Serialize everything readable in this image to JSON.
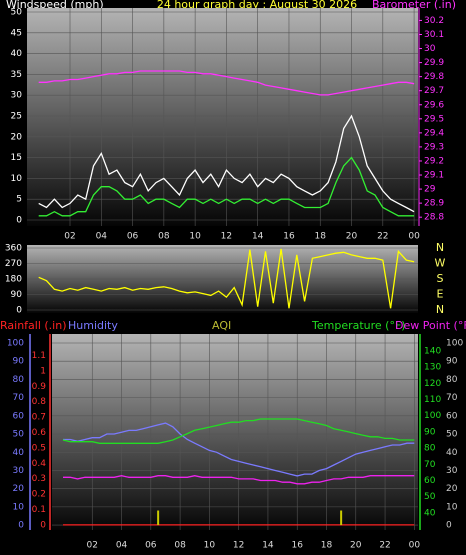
{
  "chart_data": [
    {
      "type": "line",
      "title": "24 hour graph day : August 30 2026",
      "x": [
        0,
        0.5,
        1,
        1.5,
        2,
        2.5,
        3,
        3.5,
        4,
        4.5,
        5,
        5.5,
        6,
        6.5,
        7,
        7.5,
        8,
        8.5,
        9,
        9.5,
        10,
        10.5,
        11,
        11.5,
        12,
        12.5,
        13,
        13.5,
        14,
        14.5,
        15,
        15.5,
        16,
        16.5,
        17,
        17.5,
        18,
        18.5,
        19,
        19.5,
        20,
        20.5,
        21,
        21.5,
        22,
        22.5,
        23,
        23.5,
        24
      ],
      "xlim": [
        -0.75,
        24.25
      ],
      "xticks": [
        {
          "value": 2,
          "label": "02"
        },
        {
          "value": 4,
          "label": "04"
        },
        {
          "value": 6,
          "label": "06"
        },
        {
          "value": 8,
          "label": "08"
        },
        10,
        12,
        14,
        16,
        18,
        20,
        22,
        {
          "value": 24,
          "label": "00"
        }
      ],
      "ylim": [
        0,
        50
      ],
      "yticks": [
        0,
        5,
        10,
        15,
        20,
        25,
        30,
        35,
        40,
        45,
        50
      ],
      "y2lim": [
        28.78,
        30.26
      ],
      "y2ticks": [
        28.8,
        28.9,
        29,
        29.1,
        29.2,
        29.3,
        29.4,
        29.5,
        29.6,
        29.7,
        29.8,
        29.9,
        30,
        30.1,
        30.2
      ],
      "grid": true,
      "series": [
        {
          "name": "Windspeed (mph)",
          "color": "#ffffff",
          "values": [
            4,
            3,
            5,
            3,
            4,
            6,
            5,
            13,
            16,
            11,
            12,
            9,
            8,
            11,
            7,
            9,
            10,
            8,
            6,
            10,
            12,
            9,
            11,
            8,
            12,
            10,
            9,
            11,
            8,
            10,
            9,
            11,
            10,
            8,
            7,
            6,
            7,
            9,
            14,
            22,
            25,
            20,
            13,
            10,
            7,
            5,
            4,
            3,
            2
          ]
        },
        {
          "color": "#33ee33",
          "values": [
            1,
            1,
            2,
            1,
            1,
            2,
            2,
            6,
            8,
            8,
            7,
            5,
            5,
            6,
            4,
            5,
            5,
            4,
            3,
            5,
            5,
            4,
            5,
            4,
            5,
            4,
            5,
            5,
            4,
            5,
            4,
            5,
            5,
            4,
            3,
            3,
            3,
            4,
            9,
            13,
            15,
            12,
            7,
            6,
            3,
            2,
            1,
            1,
            1
          ]
        },
        {
          "name": "Barometer (.in)",
          "color": "#ff33ff",
          "axis": "y2",
          "values": [
            29.76,
            29.76,
            29.77,
            29.77,
            29.78,
            29.78,
            29.79,
            29.8,
            29.81,
            29.82,
            29.82,
            29.83,
            29.83,
            29.84,
            29.84,
            29.84,
            29.84,
            29.84,
            29.84,
            29.83,
            29.83,
            29.82,
            29.82,
            29.81,
            29.8,
            29.79,
            29.78,
            29.77,
            29.76,
            29.74,
            29.73,
            29.72,
            29.71,
            29.7,
            29.69,
            29.68,
            29.67,
            29.67,
            29.68,
            29.69,
            29.7,
            29.71,
            29.72,
            29.73,
            29.74,
            29.75,
            29.76,
            29.76,
            29.75
          ]
        }
      ]
    },
    {
      "type": "line",
      "x": [
        0,
        0.5,
        1,
        1.5,
        2,
        2.5,
        3,
        3.5,
        4,
        4.5,
        5,
        5.5,
        6,
        6.5,
        7,
        7.5,
        8,
        8.5,
        9,
        9.5,
        10,
        10.5,
        11,
        11.5,
        12,
        12.5,
        13,
        13.5,
        14,
        14.5,
        15,
        15.5,
        16,
        16.5,
        17,
        17.5,
        18,
        18.5,
        19,
        19.5,
        20,
        20.5,
        21,
        21.5,
        22,
        22.5,
        23,
        23.5,
        24
      ],
      "xlim": [
        -0.75,
        24.25
      ],
      "ylim": [
        0,
        360
      ],
      "yticks": [
        0,
        90,
        180,
        270,
        360
      ],
      "direction_labels": [
        "N",
        "E",
        "S",
        "W",
        "N"
      ],
      "grid": true,
      "series": [
        {
          "color": "#ffff00",
          "values": [
            190,
            170,
            120,
            110,
            125,
            115,
            130,
            120,
            110,
            125,
            120,
            130,
            115,
            125,
            120,
            130,
            135,
            125,
            110,
            100,
            105,
            95,
            85,
            110,
            75,
            130,
            30,
            350,
            20,
            340,
            40,
            355,
            10,
            320,
            50,
            300,
            310,
            320,
            330,
            335,
            320,
            310,
            300,
            300,
            290,
            10,
            340,
            290,
            280
          ]
        }
      ]
    },
    {
      "type": "line",
      "x": [
        0,
        0.5,
        1,
        1.5,
        2,
        2.5,
        3,
        3.5,
        4,
        4.5,
        5,
        5.5,
        6,
        6.5,
        7,
        7.5,
        8,
        8.5,
        9,
        9.5,
        10,
        10.5,
        11,
        11.5,
        12,
        12.5,
        13,
        13.5,
        14,
        14.5,
        15,
        15.5,
        16,
        16.5,
        17,
        17.5,
        18,
        18.5,
        19,
        19.5,
        20,
        20.5,
        21,
        21.5,
        22,
        22.5,
        23,
        23.5,
        24
      ],
      "xlim": [
        -0.75,
        24.25
      ],
      "xticks": [
        {
          "value": 2,
          "label": "02"
        },
        {
          "value": 4,
          "label": "04"
        },
        {
          "value": 6,
          "label": "06"
        },
        {
          "value": 8,
          "label": "08"
        },
        10,
        12,
        14,
        16,
        18,
        20,
        22,
        {
          "value": 24,
          "label": "00"
        }
      ],
      "grid": true,
      "axes": [
        {
          "color": "#ff3333",
          "lim": [
            -0.02,
            1.22
          ],
          "ticks": [
            0,
            0.1,
            0.2,
            0.3,
            0.4,
            0.5,
            0.6,
            0.7,
            0.8,
            0.9,
            1,
            1.1
          ]
        },
        {
          "color": "#7a7aff",
          "lim": [
            -1.6,
            103.3
          ],
          "ticks": [
            0,
            10,
            20,
            30,
            40,
            50,
            60,
            70,
            80,
            90,
            100
          ]
        },
        {
          "color": "#22dd22",
          "lim": [
            30.7,
            148.6
          ],
          "ticks": [
            40,
            50,
            60,
            70,
            80,
            90,
            100,
            110,
            120,
            130,
            140
          ]
        },
        {
          "color": "#cccccc",
          "lim": [
            -1.6,
            103.3
          ],
          "ticks": [
            0,
            10,
            20,
            30,
            40,
            50,
            60,
            70,
            80,
            90,
            100
          ]
        }
      ],
      "series": [
        {
          "name": "Rainfall (.in)",
          "color": "#ff2222",
          "axis": 0,
          "values": [
            0,
            0,
            0,
            0,
            0,
            0,
            0,
            0,
            0,
            0,
            0,
            0,
            0,
            0,
            0,
            0,
            0,
            0,
            0,
            0,
            0,
            0,
            0,
            0,
            0,
            0,
            0,
            0,
            0,
            0,
            0,
            0,
            0,
            0,
            0,
            0,
            0,
            0,
            0,
            0,
            0,
            0,
            0,
            0,
            0,
            0,
            0,
            0,
            0
          ]
        },
        {
          "name": "Humidity",
          "color": "#7a7aff",
          "axis": 1,
          "values": [
            47,
            47,
            46,
            47,
            48,
            48,
            50,
            50,
            51,
            52,
            52,
            53,
            54,
            55,
            56,
            54,
            50,
            47,
            45,
            43,
            41,
            40,
            38,
            36,
            35,
            34,
            33,
            32,
            31,
            30,
            29,
            28,
            27,
            28,
            28,
            30,
            31,
            33,
            35,
            37,
            39,
            40,
            41,
            42,
            43,
            44,
            44,
            45,
            45
          ]
        },
        {
          "name": "AQI",
          "color": "#cccc00",
          "axis": 1,
          "type": "bar",
          "values": [
            null,
            null,
            null,
            null,
            null,
            null,
            null,
            null,
            null,
            null,
            null,
            null,
            null,
            8,
            null,
            null,
            null,
            null,
            null,
            null,
            null,
            null,
            null,
            null,
            null,
            null,
            null,
            null,
            null,
            null,
            null,
            null,
            null,
            null,
            null,
            null,
            null,
            null,
            8,
            null,
            null,
            null,
            null,
            null,
            null,
            null,
            null,
            null,
            null
          ]
        },
        {
          "name": "Temperature (°F)",
          "color": "#22dd22",
          "axis": 2,
          "values": [
            85,
            84,
            84,
            84,
            84,
            83,
            83,
            83,
            83,
            83,
            83,
            83,
            83,
            83,
            84,
            85,
            87,
            89,
            91,
            92,
            93,
            94,
            95,
            96,
            96,
            97,
            97,
            98,
            98,
            98,
            98,
            98,
            98,
            97,
            96,
            95,
            94,
            92,
            91,
            90,
            89,
            88,
            87,
            87,
            86,
            86,
            85,
            85,
            85
          ]
        },
        {
          "name": "Dew Point (°F)",
          "color": "#ee22ee",
          "axis": 2,
          "values": [
            62,
            62,
            61,
            62,
            62,
            62,
            62,
            62,
            63,
            62,
            62,
            62,
            62,
            63,
            63,
            62,
            62,
            62,
            63,
            62,
            62,
            62,
            62,
            62,
            61,
            61,
            61,
            60,
            60,
            60,
            59,
            59,
            58,
            58,
            59,
            59,
            60,
            61,
            61,
            62,
            62,
            62,
            63,
            63,
            63,
            63,
            63,
            63,
            63
          ]
        }
      ]
    }
  ]
}
